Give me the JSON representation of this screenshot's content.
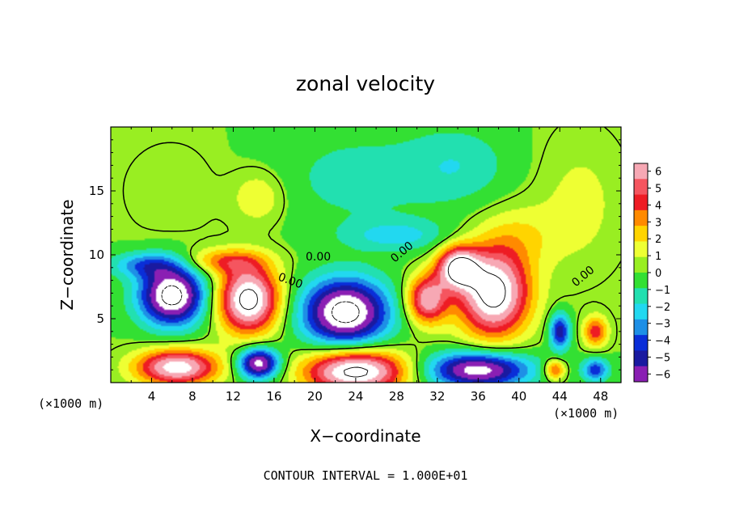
{
  "chart_data": {
    "type": "heatmap",
    "title": "zonal velocity",
    "xlabel": "X−coordinate",
    "ylabel": "Z−coordinate",
    "x_unit": "(×1000 m)",
    "z_unit": "(×1000 m)",
    "xlim": [
      0,
      50
    ],
    "ylim": [
      0,
      20
    ],
    "x_ticks": [
      "4",
      "8",
      "12",
      "16",
      "20",
      "24",
      "28",
      "32",
      "36",
      "40",
      "44",
      "48"
    ],
    "y_ticks": [
      "5",
      "10",
      "15"
    ],
    "colorbar": {
      "min": -6,
      "max": 6,
      "labels": [
        "6",
        "5",
        "4",
        "3",
        "2",
        "1",
        "0",
        "−1",
        "−2",
        "−3",
        "−4",
        "−5",
        "−6"
      ],
      "colors": [
        "#f7a8b4",
        "#f5555f",
        "#ee1c24",
        "#ff8a00",
        "#ffd400",
        "#eeff33",
        "#99ee22",
        "#33e033",
        "#22e0b0",
        "#22d8f0",
        "#1e8fe6",
        "#0a2ed8",
        "#1a1aa0",
        "#8a1fb3"
      ]
    },
    "contour_labels": [
      "0.00",
      "0.00",
      "0.00",
      "0.00"
    ],
    "contour_interval_text": "CONTOUR INTERVAL = 1.000E+01",
    "features": [
      {
        "x": 6.0,
        "z": 6.8,
        "rx": 3.2,
        "rz": 2.3,
        "v": -8
      },
      {
        "x": 13.5,
        "z": 6.5,
        "rx": 3.0,
        "rz": 2.6,
        "v": 8
      },
      {
        "x": 23.0,
        "z": 5.5,
        "rx": 4.2,
        "rz": 2.6,
        "v": -8
      },
      {
        "x": 31.0,
        "z": 6.5,
        "rx": 2.0,
        "rz": 1.9,
        "v": 6
      },
      {
        "x": 34.0,
        "z": 9.0,
        "rx": 2.0,
        "rz": 1.6,
        "v": 7
      },
      {
        "x": 37.5,
        "z": 7.0,
        "rx": 3.5,
        "rz": 3.4,
        "v": 8
      },
      {
        "x": 6.5,
        "z": 1.2,
        "rx": 4.0,
        "rz": 1.4,
        "v": 7
      },
      {
        "x": 14.5,
        "z": 1.5,
        "rx": 2.0,
        "rz": 1.2,
        "v": -7
      },
      {
        "x": 24.0,
        "z": 0.9,
        "rx": 5.0,
        "rz": 1.7,
        "v": 8
      },
      {
        "x": 36.0,
        "z": 1.0,
        "rx": 5.0,
        "rz": 1.4,
        "v": -7
      },
      {
        "x": 44.0,
        "z": 4.0,
        "rx": 1.0,
        "rz": 1.4,
        "v": -5
      },
      {
        "x": 47.5,
        "z": 4.0,
        "rx": 1.2,
        "rz": 1.2,
        "v": 4
      },
      {
        "x": 47.5,
        "z": 1.0,
        "rx": 1.3,
        "rz": 0.9,
        "v": -4
      },
      {
        "x": 43.5,
        "z": 1.0,
        "rx": 1.0,
        "rz": 0.8,
        "v": 4
      },
      {
        "x": 3.5,
        "z": 9.2,
        "rx": 3.5,
        "rz": 1.0,
        "v": -3
      },
      {
        "x": 11.0,
        "z": 9.5,
        "rx": 4.0,
        "rz": 1.0,
        "v": 3
      },
      {
        "x": 14.5,
        "z": 14.5,
        "rx": 2.5,
        "rz": 2.0,
        "v": 1.8
      },
      {
        "x": 28.0,
        "z": 11.5,
        "rx": 5.0,
        "rz": 1.2,
        "v": -2
      },
      {
        "x": 40.0,
        "z": 11.5,
        "rx": 4.0,
        "rz": 2.5,
        "v": 1.5
      },
      {
        "x": 6.0,
        "z": 15.0,
        "rx": 5.0,
        "rz": 4.0,
        "v": 0.5
      },
      {
        "x": 24.0,
        "z": 16.0,
        "rx": 8.0,
        "rz": 4.0,
        "v": -1.2
      },
      {
        "x": 34.0,
        "z": 17.0,
        "rx": 5.0,
        "rz": 3.0,
        "v": -1.5
      },
      {
        "x": 46.0,
        "z": 14.0,
        "rx": 4.0,
        "rz": 5.0,
        "v": 1.2
      }
    ]
  }
}
